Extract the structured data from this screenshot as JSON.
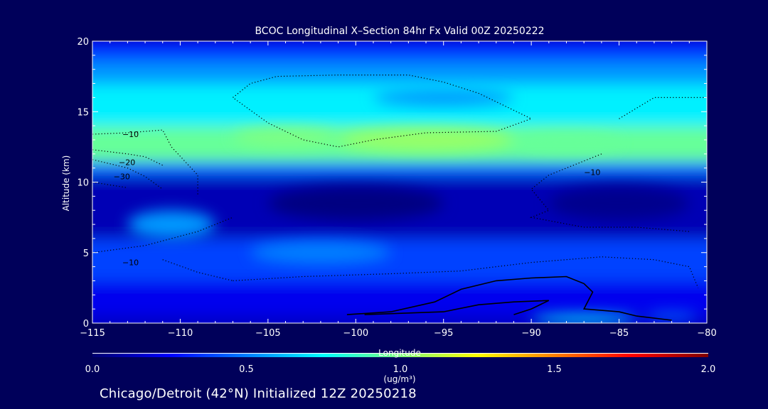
{
  "chart_data": {
    "type": "heatmap",
    "title": "BCOC Longitudinal X–Section 84hr  Fx Valid 00Z 20250222",
    "xlabel": "Longitude",
    "ylabel": "Altitude (km)",
    "xlim": [
      -115,
      -80
    ],
    "ylim": [
      0,
      20
    ],
    "x_ticks": [
      -115,
      -110,
      -105,
      -100,
      -95,
      -90,
      -85,
      -80
    ],
    "x_tick_labels": [
      "−115",
      "−110",
      "−105",
      "−100",
      "−95",
      "−90",
      "−85",
      "−80"
    ],
    "y_ticks": [
      0,
      5,
      10,
      15,
      20
    ],
    "y_tick_labels": [
      "0",
      "5",
      "10",
      "15",
      "20"
    ],
    "colorbar": {
      "range": [
        0.0,
        2.0
      ],
      "ticks": [
        0.0,
        0.5,
        1.0,
        1.5,
        2.0
      ],
      "tick_labels": [
        "0.0",
        "0.5",
        "1.0",
        "1.5",
        "2.0"
      ],
      "units": "(ug/m³)",
      "colors": [
        "#000070",
        "#0000ff",
        "#0080ff",
        "#00ffff",
        "#80ff80",
        "#ffff00",
        "#ff8000",
        "#ff0000",
        "#800000"
      ]
    },
    "bands": [
      {
        "z0": 0.0,
        "z1": 0.6,
        "value": 0.15
      },
      {
        "z0": 0.6,
        "z1": 3.0,
        "value": 0.22
      },
      {
        "z0": 3.0,
        "z1": 6.0,
        "value": 0.38
      },
      {
        "z0": 6.0,
        "z1": 10.5,
        "value": 0.12
      },
      {
        "z0": 10.5,
        "z1": 11.5,
        "value": 0.45
      },
      {
        "z0": 11.5,
        "z1": 14.0,
        "value": 0.95
      },
      {
        "z0": 14.0,
        "z1": 17.0,
        "value": 0.72
      },
      {
        "z0": 17.0,
        "z1": 18.5,
        "value": 0.55
      },
      {
        "z0": 18.5,
        "z1": 19.5,
        "value": 0.4
      },
      {
        "z0": 19.5,
        "z1": 20.0,
        "value": 0.28
      }
    ],
    "blobs": [
      {
        "lon": -96.0,
        "alt": 13.0,
        "dlon": 5.0,
        "dalt": 0.8,
        "value": 1.05
      },
      {
        "lon": -104.0,
        "alt": 13.2,
        "dlon": 3.0,
        "dalt": 0.6,
        "value": 1.0
      },
      {
        "lon": -88.0,
        "alt": 12.8,
        "dlon": 3.0,
        "dalt": 0.6,
        "value": 0.95
      },
      {
        "lon": -110.5,
        "alt": 7.0,
        "dlon": 2.5,
        "dalt": 1.0,
        "value": 0.55
      },
      {
        "lon": -102.0,
        "alt": 5.0,
        "dlon": 4.0,
        "dalt": 0.8,
        "value": 0.5
      },
      {
        "lon": -87.0,
        "alt": 0.3,
        "dlon": 3.0,
        "dalt": 0.3,
        "value": 0.75
      },
      {
        "lon": -82.0,
        "alt": 0.5,
        "dlon": 1.5,
        "dalt": 0.3,
        "value": 0.45
      },
      {
        "lon": -95.0,
        "alt": 16.0,
        "dlon": 4.0,
        "dalt": 0.6,
        "value": 0.55
      },
      {
        "lon": -100.0,
        "alt": 8.5,
        "dlon": 5.0,
        "dalt": 1.2,
        "value": 0.03
      },
      {
        "lon": -85.0,
        "alt": 8.5,
        "dlon": 4.0,
        "dalt": 1.2,
        "value": 0.05
      }
    ],
    "contours": [
      {
        "style": "dotted",
        "points": [
          [
            -115,
            13.4
          ],
          [
            -113,
            13.5
          ],
          [
            -111,
            13.7
          ],
          [
            -110.5,
            12.5
          ],
          [
            -109,
            10.5
          ],
          [
            -109,
            9.0
          ]
        ]
      },
      {
        "style": "dotted",
        "points": [
          [
            -115,
            12.3
          ],
          [
            -113,
            12.0
          ],
          [
            -112,
            11.8
          ],
          [
            -111,
            11.2
          ]
        ]
      },
      {
        "style": "dotted",
        "points": [
          [
            -115,
            11.6
          ],
          [
            -113,
            11.0
          ],
          [
            -112,
            10.4
          ],
          [
            -111,
            9.5
          ]
        ]
      },
      {
        "style": "dotted",
        "points": [
          [
            -115,
            10.0
          ],
          [
            -113,
            9.6
          ]
        ]
      },
      {
        "style": "dotted",
        "points": [
          [
            -107,
            16.0
          ],
          [
            -106,
            17.0
          ],
          [
            -104.5,
            17.5
          ],
          [
            -101,
            17.6
          ],
          [
            -97,
            17.6
          ],
          [
            -95,
            17.1
          ],
          [
            -93,
            16.3
          ],
          [
            -90,
            14.5
          ],
          [
            -92,
            13.6
          ],
          [
            -96,
            13.5
          ],
          [
            -99,
            13.0
          ],
          [
            -101,
            12.5
          ],
          [
            -103,
            13.0
          ],
          [
            -105,
            14.2
          ],
          [
            -107,
            16.0
          ]
        ]
      },
      {
        "style": "dotted",
        "points": [
          [
            -85,
            14.5
          ],
          [
            -83,
            16.0
          ],
          [
            -80,
            16.0
          ]
        ]
      },
      {
        "style": "dotted",
        "points": [
          [
            -86,
            12.0
          ],
          [
            -89,
            10.5
          ],
          [
            -90,
            9.5
          ],
          [
            -89,
            8.0
          ],
          [
            -90,
            7.5
          ],
          [
            -87,
            6.8
          ],
          [
            -84,
            6.8
          ],
          [
            -81,
            6.5
          ]
        ]
      },
      {
        "style": "dotted",
        "points": [
          [
            -115,
            5.0
          ],
          [
            -112,
            5.5
          ],
          [
            -109,
            6.5
          ],
          [
            -107,
            7.5
          ]
        ]
      },
      {
        "style": "dotted",
        "points": [
          [
            -111,
            4.5
          ],
          [
            -109,
            3.6
          ],
          [
            -107,
            3.0
          ]
        ]
      },
      {
        "style": "dotted",
        "points": [
          [
            -107,
            3.0
          ],
          [
            -103,
            3.3
          ],
          [
            -98,
            3.5
          ],
          [
            -94,
            3.7
          ],
          [
            -90,
            4.3
          ],
          [
            -86,
            4.7
          ],
          [
            -83,
            4.5
          ],
          [
            -81,
            4.0
          ],
          [
            -80.5,
            2.5
          ]
        ]
      },
      {
        "style": "solid",
        "points": [
          [
            -100.5,
            0.6
          ],
          [
            -98,
            0.8
          ],
          [
            -95.5,
            1.5
          ],
          [
            -94,
            2.4
          ],
          [
            -92,
            3.0
          ],
          [
            -90,
            3.2
          ],
          [
            -88,
            3.3
          ],
          [
            -87,
            2.8
          ],
          [
            -86.5,
            2.2
          ],
          [
            -87,
            1.0
          ],
          [
            -85,
            0.8
          ],
          [
            -84,
            0.5
          ],
          [
            -82,
            0.2
          ]
        ]
      },
      {
        "style": "solid",
        "points": [
          [
            -99.5,
            0.6
          ],
          [
            -95,
            0.8
          ],
          [
            -93,
            1.3
          ],
          [
            -91,
            1.5
          ],
          [
            -89,
            1.6
          ],
          [
            -90,
            1.0
          ],
          [
            -91,
            0.6
          ]
        ]
      }
    ],
    "contour_labels": [
      {
        "text": "10",
        "lon": -113.3,
        "alt": 13.4
      },
      {
        "text": "20",
        "lon": -113.5,
        "alt": 11.4
      },
      {
        "text": "30",
        "lon": -113.8,
        "alt": 10.4
      },
      {
        "text": "10",
        "lon": -113.3,
        "alt": 4.3
      },
      {
        "text": "10",
        "lon": -87.0,
        "alt": 10.7
      }
    ]
  },
  "footer": {
    "text": "Chicago/Detroit (42°N) Initialized 12Z 20250218"
  }
}
